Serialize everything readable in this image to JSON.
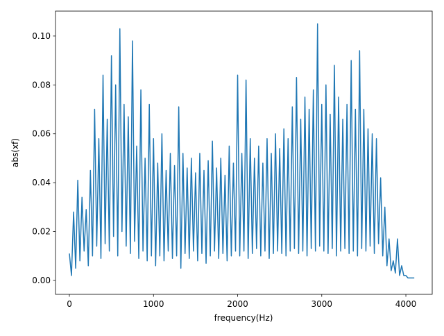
{
  "chart_data": {
    "type": "line",
    "xlabel": "frequency(Hz)",
    "ylabel": "abs(xf)",
    "xlim": [
      -165,
      4313
    ],
    "ylim": [
      -0.0057,
      0.1102
    ],
    "xticks": [
      0,
      1000,
      2000,
      3000,
      4000
    ],
    "yticks": [
      {
        "value": 0,
        "label": "0.00"
      },
      {
        "value": 0.02,
        "label": "0.02"
      },
      {
        "value": 0.04,
        "label": "0.04"
      },
      {
        "value": 0.06,
        "label": "0.06"
      },
      {
        "value": 0.08,
        "label": "0.08"
      },
      {
        "value": 0.1,
        "label": "0.10"
      }
    ],
    "grid": false,
    "series": [
      {
        "color": "#1f77b4",
        "x": [
          0,
          25,
          50,
          75,
          100,
          125,
          150,
          175,
          200,
          225,
          250,
          275,
          300,
          325,
          350,
          375,
          400,
          425,
          450,
          475,
          500,
          525,
          550,
          575,
          600,
          625,
          650,
          675,
          700,
          725,
          750,
          775,
          800,
          825,
          850,
          875,
          900,
          925,
          950,
          975,
          1000,
          1025,
          1050,
          1075,
          1100,
          1125,
          1150,
          1175,
          1200,
          1225,
          1250,
          1275,
          1300,
          1325,
          1350,
          1375,
          1400,
          1425,
          1450,
          1475,
          1500,
          1525,
          1550,
          1575,
          1600,
          1625,
          1650,
          1675,
          1700,
          1725,
          1750,
          1775,
          1800,
          1825,
          1850,
          1875,
          1900,
          1925,
          1950,
          1975,
          2000,
          2025,
          2050,
          2075,
          2100,
          2125,
          2150,
          2175,
          2200,
          2225,
          2250,
          2275,
          2300,
          2325,
          2350,
          2375,
          2400,
          2425,
          2450,
          2475,
          2500,
          2525,
          2550,
          2575,
          2600,
          2625,
          2650,
          2675,
          2700,
          2725,
          2750,
          2775,
          2800,
          2825,
          2850,
          2875,
          2900,
          2925,
          2950,
          2975,
          3000,
          3025,
          3050,
          3075,
          3100,
          3125,
          3150,
          3175,
          3200,
          3225,
          3250,
          3275,
          3300,
          3325,
          3350,
          3375,
          3400,
          3425,
          3450,
          3475,
          3500,
          3525,
          3550,
          3575,
          3600,
          3625,
          3650,
          3675,
          3700,
          3725,
          3750,
          3775,
          3800,
          3825,
          3850,
          3875,
          3900,
          3925,
          3950,
          3975,
          4000,
          4025,
          4050,
          4075,
          4100
        ],
        "values": [
          0.011,
          0.002,
          0.028,
          0.005,
          0.041,
          0.008,
          0.034,
          0.012,
          0.029,
          0.006,
          0.045,
          0.01,
          0.07,
          0.014,
          0.058,
          0.009,
          0.084,
          0.015,
          0.066,
          0.012,
          0.092,
          0.018,
          0.08,
          0.01,
          0.103,
          0.02,
          0.072,
          0.014,
          0.067,
          0.011,
          0.098,
          0.016,
          0.055,
          0.009,
          0.078,
          0.012,
          0.05,
          0.008,
          0.072,
          0.01,
          0.058,
          0.006,
          0.048,
          0.01,
          0.06,
          0.008,
          0.045,
          0.012,
          0.052,
          0.009,
          0.047,
          0.01,
          0.071,
          0.005,
          0.052,
          0.011,
          0.046,
          0.009,
          0.05,
          0.012,
          0.044,
          0.008,
          0.052,
          0.011,
          0.045,
          0.007,
          0.049,
          0.01,
          0.057,
          0.012,
          0.046,
          0.009,
          0.05,
          0.011,
          0.043,
          0.008,
          0.055,
          0.01,
          0.048,
          0.012,
          0.084,
          0.01,
          0.052,
          0.012,
          0.082,
          0.009,
          0.058,
          0.011,
          0.05,
          0.013,
          0.055,
          0.01,
          0.048,
          0.012,
          0.058,
          0.009,
          0.052,
          0.011,
          0.06,
          0.012,
          0.054,
          0.011,
          0.062,
          0.01,
          0.058,
          0.012,
          0.071,
          0.013,
          0.083,
          0.011,
          0.066,
          0.012,
          0.075,
          0.01,
          0.07,
          0.013,
          0.078,
          0.012,
          0.105,
          0.014,
          0.072,
          0.012,
          0.08,
          0.011,
          0.068,
          0.013,
          0.088,
          0.01,
          0.075,
          0.012,
          0.066,
          0.013,
          0.072,
          0.011,
          0.09,
          0.012,
          0.07,
          0.01,
          0.094,
          0.013,
          0.07,
          0.012,
          0.062,
          0.014,
          0.06,
          0.011,
          0.058,
          0.015,
          0.042,
          0.01,
          0.03,
          0.006,
          0.017,
          0.004,
          0.008,
          0.003,
          0.017,
          0.002,
          0.006,
          0.002,
          0.002,
          0.001,
          0.001,
          0.001,
          0.001
        ]
      }
    ]
  }
}
